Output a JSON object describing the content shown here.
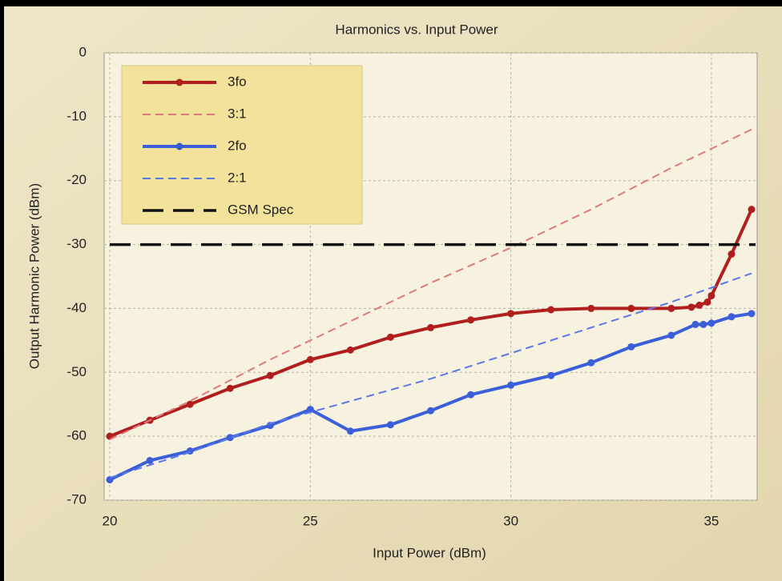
{
  "chart_data": {
    "type": "line",
    "title": "Harmonics vs. Input Power",
    "xlabel": "Input Power (dBm)",
    "ylabel": "Output Harmonic Power (dBm)",
    "xlim": [
      20,
      36.1
    ],
    "xticks": [
      20,
      25,
      30,
      35
    ],
    "ylim": [
      -70,
      0
    ],
    "yticks": [
      0,
      -10,
      -20,
      -30,
      -40,
      -50,
      -60,
      -70
    ],
    "grid": true,
    "legend": "upper left",
    "series": [
      {
        "name": "3fo",
        "color": "#b01e1e",
        "style": "solid",
        "markers": true,
        "x": [
          20,
          21,
          22,
          23,
          24,
          25,
          26,
          27,
          28,
          29,
          30,
          31,
          32,
          33,
          34,
          34.5,
          34.7,
          34.9,
          35,
          35.5,
          36
        ],
        "values": [
          -60,
          -57.5,
          -55,
          -52.5,
          -50.5,
          -48,
          -46.5,
          -44.5,
          -43,
          -41.8,
          -40.8,
          -40.2,
          -40,
          -40,
          -40,
          -39.8,
          -39.5,
          -39,
          -38,
          -31.5,
          -24.5
        ]
      },
      {
        "name": "3:1",
        "color": "#e07a7a",
        "style": "dashed",
        "markers": false,
        "x": [
          20,
          22,
          24,
          26,
          28,
          30,
          32,
          34,
          36
        ],
        "values": [
          -60.5,
          -54.5,
          -48,
          -42,
          -36,
          -30.5,
          -24.5,
          -18,
          -12
        ]
      },
      {
        "name": "2fo",
        "color": "#3a5fd8",
        "style": "solid",
        "markers": true,
        "x": [
          20,
          21,
          22,
          23,
          24,
          25,
          26,
          27,
          28,
          29,
          30,
          31,
          32,
          33,
          34,
          34.6,
          34.8,
          35,
          35.5,
          36
        ],
        "values": [
          -66.8,
          -63.8,
          -62.3,
          -60.2,
          -58.3,
          -55.8,
          -59.2,
          -58.2,
          -56,
          -53.5,
          -52,
          -50.5,
          -48.5,
          -46,
          -44.2,
          -42.5,
          -42.5,
          -42.3,
          -41.3,
          -40.8
        ]
      },
      {
        "name": "2:1",
        "color": "#5a78e8",
        "style": "dashed",
        "markers": false,
        "x": [
          20,
          22,
          24,
          26,
          28,
          30,
          32,
          34,
          36
        ],
        "values": [
          -66.5,
          -62.5,
          -58,
          -54.5,
          -51,
          -47,
          -43,
          -39,
          -34.5
        ]
      },
      {
        "name": "GSM Spec",
        "color": "#111111",
        "style": "longdash",
        "markers": false,
        "x": [
          20,
          36.1
        ],
        "values": [
          -30,
          -30
        ]
      }
    ]
  }
}
